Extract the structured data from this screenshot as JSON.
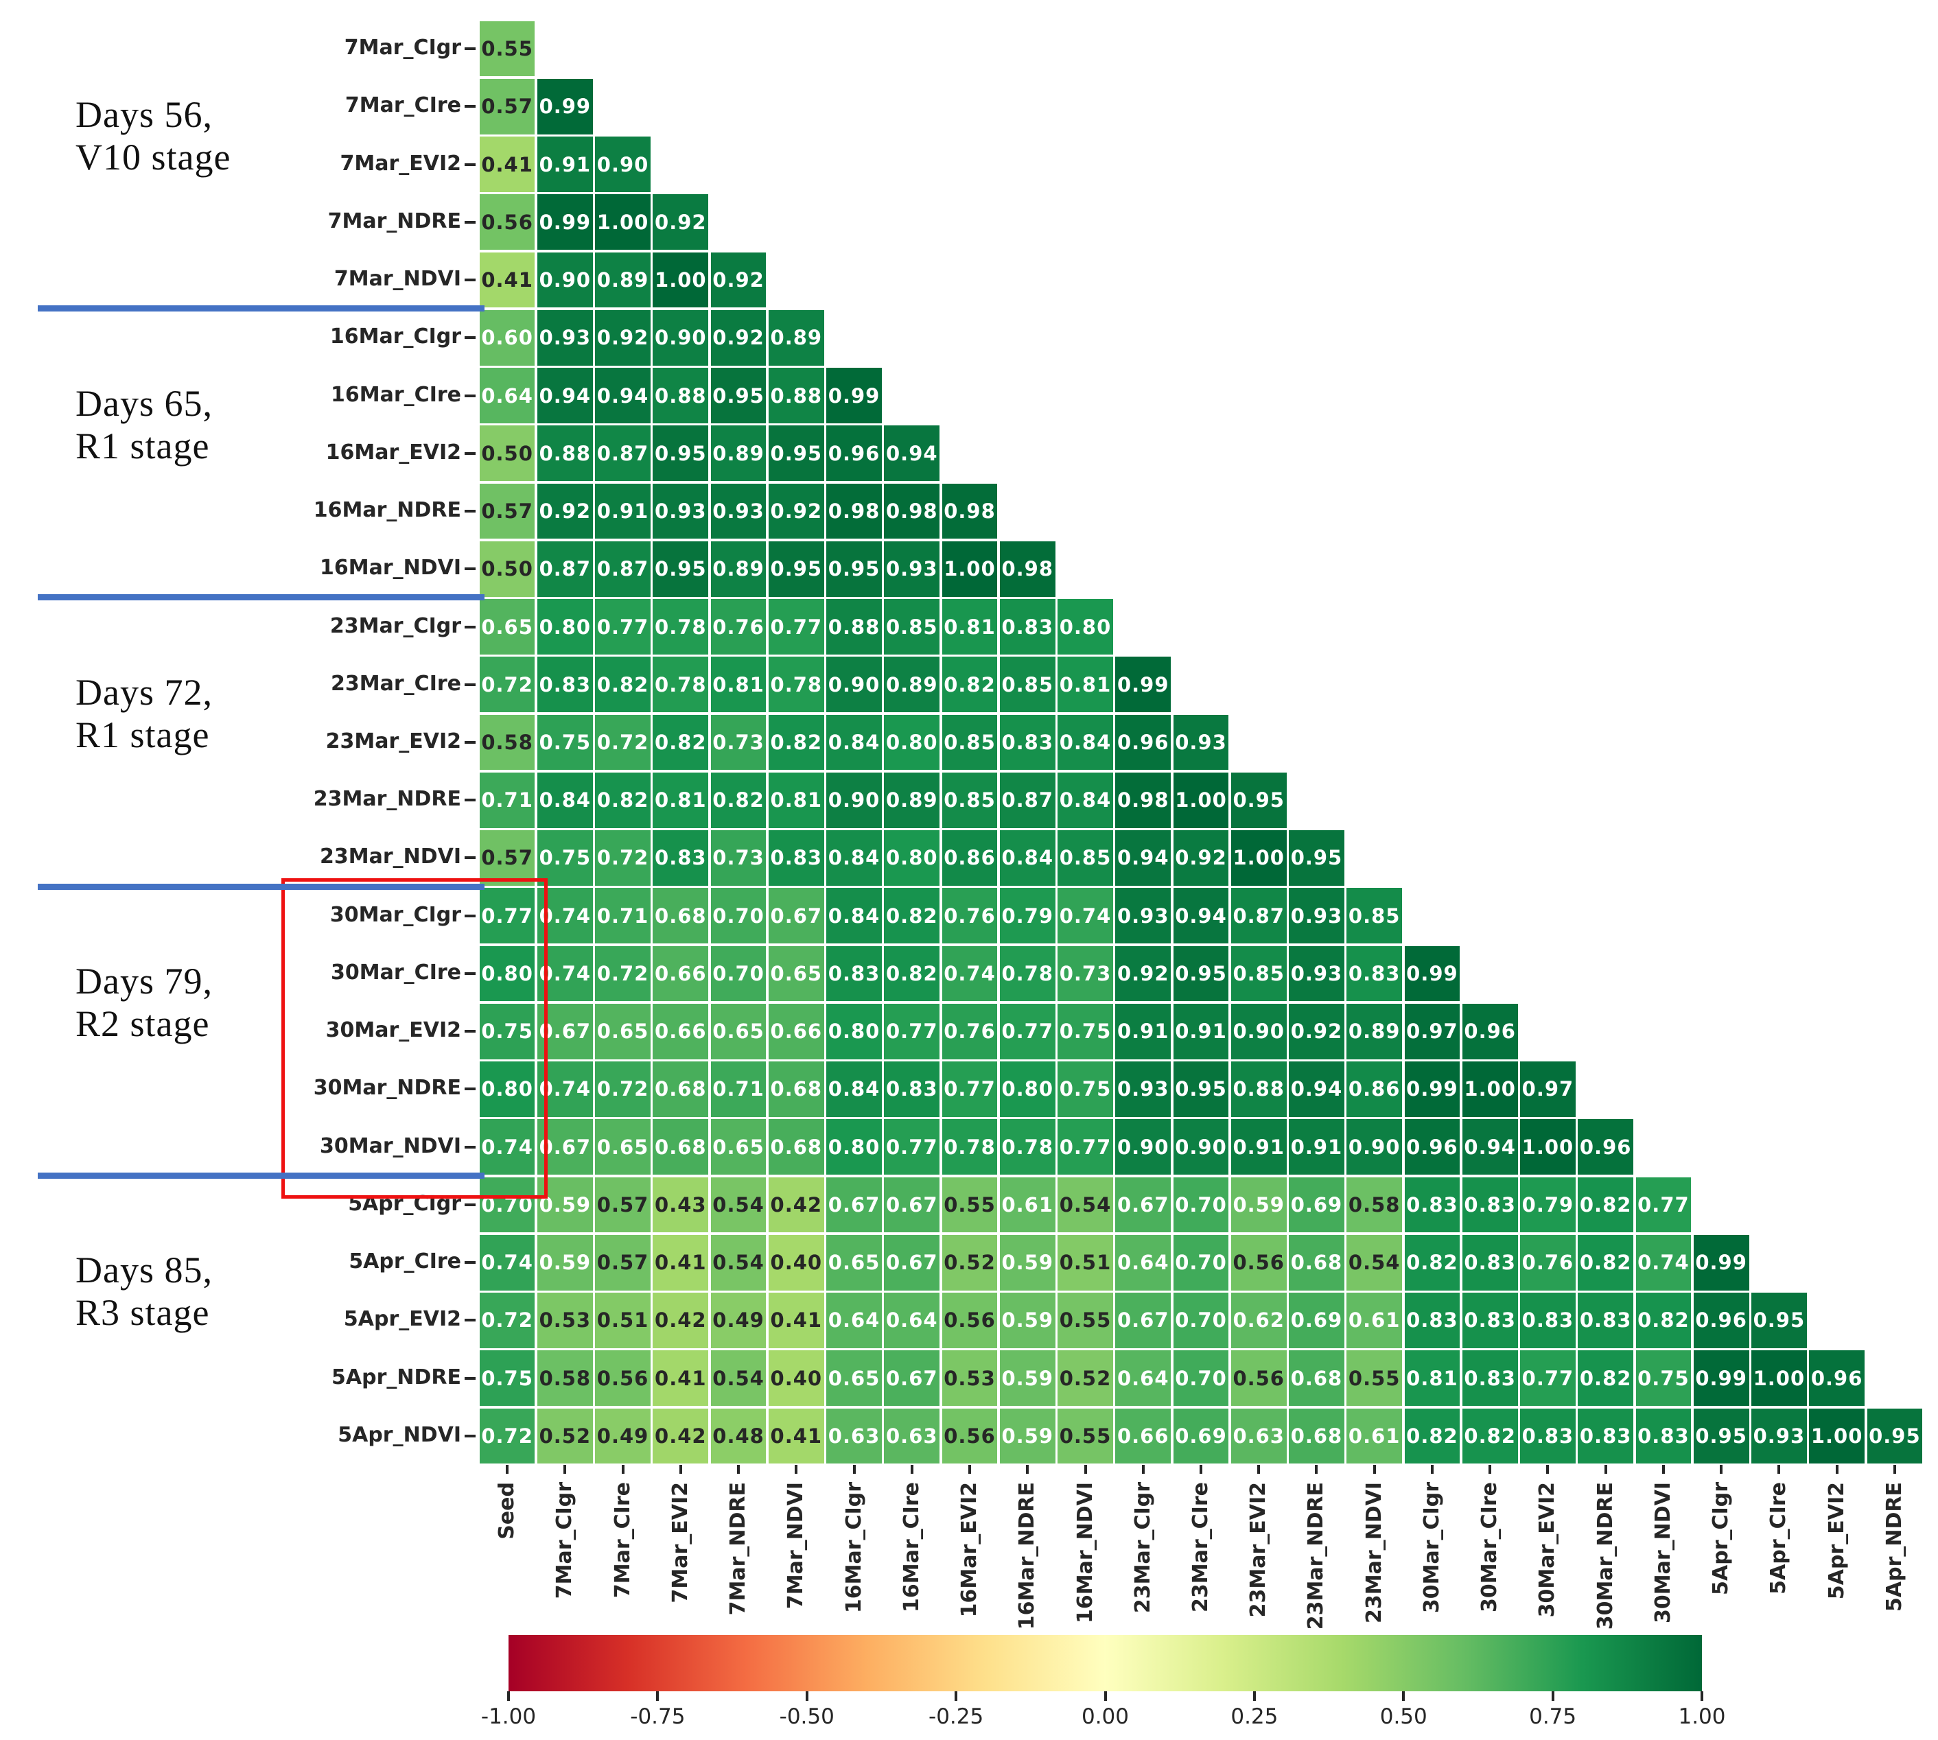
{
  "chart_data": {
    "type": "heatmap",
    "title": "",
    "xlabel": "",
    "ylabel": "",
    "x_labels": [
      "Seed",
      "7Mar_CIgr",
      "7Mar_CIre",
      "7Mar_EVI2",
      "7Mar_NDRE",
      "7Mar_NDVI",
      "16Mar_CIgr",
      "16Mar_CIre",
      "16Mar_EVI2",
      "16Mar_NDRE",
      "16Mar_NDVI",
      "23Mar_CIgr",
      "23Mar_CIre",
      "23Mar_EVI2",
      "23Mar_NDRE",
      "23Mar_NDVI",
      "30Mar_CIgr",
      "30Mar_CIre",
      "30Mar_EVI2",
      "30Mar_NDRE",
      "30Mar_NDVI",
      "5Apr_CIgr",
      "5Apr_CIre",
      "5Apr_EVI2",
      "5Apr_NDRE"
    ],
    "rows": [
      {
        "label": "7Mar_CIgr",
        "values": [
          0.55
        ]
      },
      {
        "label": "7Mar_CIre",
        "values": [
          0.57,
          0.99
        ]
      },
      {
        "label": "7Mar_EVI2",
        "values": [
          0.41,
          0.91,
          0.9
        ]
      },
      {
        "label": "7Mar_NDRE",
        "values": [
          0.56,
          0.99,
          1.0,
          0.92
        ]
      },
      {
        "label": "7Mar_NDVI",
        "values": [
          0.41,
          0.9,
          0.89,
          1.0,
          0.92
        ]
      },
      {
        "label": "16Mar_CIgr",
        "values": [
          0.6,
          0.93,
          0.92,
          0.9,
          0.92,
          0.89
        ]
      },
      {
        "label": "16Mar_CIre",
        "values": [
          0.64,
          0.94,
          0.94,
          0.88,
          0.95,
          0.88,
          0.99
        ]
      },
      {
        "label": "16Mar_EVI2",
        "values": [
          0.5,
          0.88,
          0.87,
          0.95,
          0.89,
          0.95,
          0.96,
          0.94
        ]
      },
      {
        "label": "16Mar_NDRE",
        "values": [
          0.57,
          0.92,
          0.91,
          0.93,
          0.93,
          0.92,
          0.98,
          0.98,
          0.98
        ]
      },
      {
        "label": "16Mar_NDVI",
        "values": [
          0.5,
          0.87,
          0.87,
          0.95,
          0.89,
          0.95,
          0.95,
          0.93,
          1.0,
          0.98
        ]
      },
      {
        "label": "23Mar_CIgr",
        "values": [
          0.65,
          0.8,
          0.77,
          0.78,
          0.76,
          0.77,
          0.88,
          0.85,
          0.81,
          0.83,
          0.8
        ]
      },
      {
        "label": "23Mar_CIre",
        "values": [
          0.72,
          0.83,
          0.82,
          0.78,
          0.81,
          0.78,
          0.9,
          0.89,
          0.82,
          0.85,
          0.81,
          0.99
        ]
      },
      {
        "label": "23Mar_EVI2",
        "values": [
          0.58,
          0.75,
          0.72,
          0.82,
          0.73,
          0.82,
          0.84,
          0.8,
          0.85,
          0.83,
          0.84,
          0.96,
          0.93
        ]
      },
      {
        "label": "23Mar_NDRE",
        "values": [
          0.71,
          0.84,
          0.82,
          0.81,
          0.82,
          0.81,
          0.9,
          0.89,
          0.85,
          0.87,
          0.84,
          0.98,
          1.0,
          0.95
        ]
      },
      {
        "label": "23Mar_NDVI",
        "values": [
          0.57,
          0.75,
          0.72,
          0.83,
          0.73,
          0.83,
          0.84,
          0.8,
          0.86,
          0.84,
          0.85,
          0.94,
          0.92,
          1.0,
          0.95
        ]
      },
      {
        "label": "30Mar_CIgr",
        "values": [
          0.77,
          0.74,
          0.71,
          0.68,
          0.7,
          0.67,
          0.84,
          0.82,
          0.76,
          0.79,
          0.74,
          0.93,
          0.94,
          0.87,
          0.93,
          0.85
        ]
      },
      {
        "label": "30Mar_CIre",
        "values": [
          0.8,
          0.74,
          0.72,
          0.66,
          0.7,
          0.65,
          0.83,
          0.82,
          0.74,
          0.78,
          0.73,
          0.92,
          0.95,
          0.85,
          0.93,
          0.83,
          0.99
        ]
      },
      {
        "label": "30Mar_EVI2",
        "values": [
          0.75,
          0.67,
          0.65,
          0.66,
          0.65,
          0.66,
          0.8,
          0.77,
          0.76,
          0.77,
          0.75,
          0.91,
          0.91,
          0.9,
          0.92,
          0.89,
          0.97,
          0.96
        ]
      },
      {
        "label": "30Mar_NDRE",
        "values": [
          0.8,
          0.74,
          0.72,
          0.68,
          0.71,
          0.68,
          0.84,
          0.83,
          0.77,
          0.8,
          0.75,
          0.93,
          0.95,
          0.88,
          0.94,
          0.86,
          0.99,
          1.0,
          0.97
        ]
      },
      {
        "label": "30Mar_NDVI",
        "values": [
          0.74,
          0.67,
          0.65,
          0.68,
          0.65,
          0.68,
          0.8,
          0.77,
          0.78,
          0.78,
          0.77,
          0.9,
          0.9,
          0.91,
          0.91,
          0.9,
          0.96,
          0.94,
          1.0,
          0.96
        ]
      },
      {
        "label": "5Apr_CIgr",
        "values": [
          0.7,
          0.59,
          0.57,
          0.43,
          0.54,
          0.42,
          0.67,
          0.67,
          0.55,
          0.61,
          0.54,
          0.67,
          0.7,
          0.59,
          0.69,
          0.58,
          0.83,
          0.83,
          0.79,
          0.82,
          0.77
        ]
      },
      {
        "label": "5Apr_CIre",
        "values": [
          0.74,
          0.59,
          0.57,
          0.41,
          0.54,
          0.4,
          0.65,
          0.67,
          0.52,
          0.59,
          0.51,
          0.64,
          0.7,
          0.56,
          0.68,
          0.54,
          0.82,
          0.83,
          0.76,
          0.82,
          0.74,
          0.99
        ]
      },
      {
        "label": "5Apr_EVI2",
        "values": [
          0.72,
          0.53,
          0.51,
          0.42,
          0.49,
          0.41,
          0.64,
          0.64,
          0.56,
          0.59,
          0.55,
          0.67,
          0.7,
          0.62,
          0.69,
          0.61,
          0.83,
          0.83,
          0.83,
          0.83,
          0.82,
          0.96,
          0.95
        ]
      },
      {
        "label": "5Apr_NDRE",
        "values": [
          0.75,
          0.58,
          0.56,
          0.41,
          0.54,
          0.4,
          0.65,
          0.67,
          0.53,
          0.59,
          0.52,
          0.64,
          0.7,
          0.56,
          0.68,
          0.55,
          0.81,
          0.83,
          0.77,
          0.82,
          0.75,
          0.99,
          1.0,
          0.96
        ]
      },
      {
        "label": "5Apr_NDVI",
        "values": [
          0.72,
          0.52,
          0.49,
          0.42,
          0.48,
          0.41,
          0.63,
          0.63,
          0.56,
          0.59,
          0.55,
          0.66,
          0.69,
          0.63,
          0.68,
          0.61,
          0.82,
          0.82,
          0.83,
          0.83,
          0.83,
          0.95,
          0.93,
          1.0,
          0.95
        ]
      }
    ],
    "value_format": "0.00",
    "colormap": {
      "name": "RdYlGn",
      "domain": [
        -1,
        1
      ],
      "anchors": [
        "#a50026",
        "#d73027",
        "#f46d43",
        "#fdae61",
        "#fee08b",
        "#ffffbf",
        "#d9ef8b",
        "#a6d96a",
        "#66bd63",
        "#1a9850",
        "#006837"
      ]
    },
    "colorbar": {
      "tick_labels": [
        "-1.00",
        "-0.75",
        "-0.50",
        "-0.25",
        "0.00",
        "0.25",
        "0.50",
        "0.75",
        "1.00"
      ],
      "tick_values": [
        -1.0,
        -0.75,
        -0.5,
        -0.25,
        0.0,
        0.25,
        0.5,
        0.75,
        1.0
      ]
    },
    "stage_annotations": [
      {
        "line1": "Days 56,",
        "line2": "V10 stage"
      },
      {
        "line1": "Days 65,",
        "line2": "R1 stage"
      },
      {
        "line1": "Days 72,",
        "line2": "R1 stage"
      },
      {
        "line1": "Days 79,",
        "line2": "R2 stage"
      },
      {
        "line1": "Days 85,",
        "line2": "R3 stage"
      }
    ],
    "separator_lines": {
      "color": "#4472c4",
      "after_rows": [
        5,
        10,
        15,
        20
      ]
    },
    "highlight_box": {
      "color": "#ee1111",
      "target": "30Mar rows (Days 79, R2 stage) labels and Seed column"
    },
    "text_colors": {
      "dark": "#262626",
      "light": "#ffffff"
    },
    "grid_color": "#ffffff"
  }
}
